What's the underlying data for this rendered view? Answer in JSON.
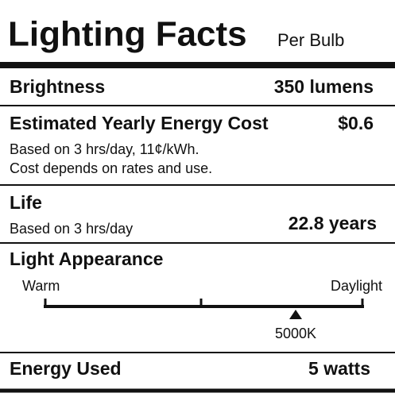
{
  "header": {
    "title": "Lighting Facts",
    "subtitle": "Per Bulb"
  },
  "brightness": {
    "label": "Brightness",
    "value": "350 lumens"
  },
  "cost": {
    "label": "Estimated Yearly Energy Cost",
    "value": "$0.6",
    "notes": [
      "Based on 3 hrs/day, 11¢/kWh.",
      "Cost depends on rates and use."
    ]
  },
  "life": {
    "label": "Life",
    "note": "Based on 3 hrs/day",
    "value": "22.8 years"
  },
  "appearance": {
    "label": "Light Appearance",
    "left": "Warm",
    "right": "Daylight",
    "value": "5000K"
  },
  "energy": {
    "label": "Energy Used",
    "value": "5 watts"
  }
}
